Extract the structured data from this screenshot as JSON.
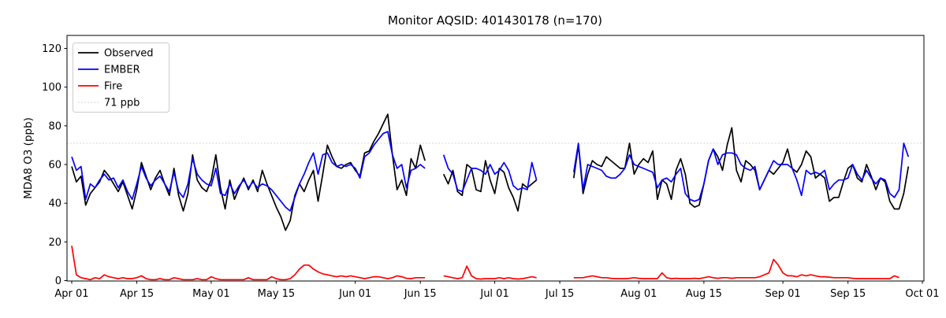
{
  "figure": {
    "title": "Monitor AQSID: 401430178 (n=170)"
  },
  "axes": {
    "ylabel": "MDA8 O3 (ppb)",
    "yticks": [
      0,
      20,
      40,
      60,
      80,
      100,
      120
    ],
    "xticks": [
      {
        "label": "Apr 01",
        "day": 0
      },
      {
        "label": "Apr 15",
        "day": 14
      },
      {
        "label": "May 01",
        "day": 30
      },
      {
        "label": "May 15",
        "day": 44
      },
      {
        "label": "Jun 01",
        "day": 61
      },
      {
        "label": "Jun 15",
        "day": 75
      },
      {
        "label": "Jul 01",
        "day": 91
      },
      {
        "label": "Jul 15",
        "day": 105
      },
      {
        "label": "Aug 01",
        "day": 122
      },
      {
        "label": "Aug 15",
        "day": 136
      },
      {
        "label": "Sep 01",
        "day": 153
      },
      {
        "label": "Sep 15",
        "day": 167
      },
      {
        "label": "Oct 01",
        "day": 183
      }
    ]
  },
  "legend": {
    "entries": [
      {
        "label": "Observed",
        "color": "#000000",
        "dash": null
      },
      {
        "label": "EMBER",
        "color": "#0000ff",
        "dash": null
      },
      {
        "label": "Fire",
        "color": "#ff0000",
        "dash": null
      },
      {
        "label": "71 ppb",
        "color": "#d3d3d3",
        "dash": "1.5 2.6"
      }
    ]
  },
  "chart_data": {
    "type": "line",
    "title": "Monitor AQSID: 401430178 (n=170)",
    "xlabel": "",
    "ylabel": "MDA8 O3 (ppb)",
    "x_unit": "days since Apr 01 (daily values, Apr 01 = day 0)",
    "x_range_days": [
      0,
      183
    ],
    "ylim": [
      0,
      126.5
    ],
    "grid": false,
    "legend_position": "upper left",
    "threshold": {
      "value": 71,
      "label": "71 ppb",
      "color": "#d3d3d3",
      "style": "dotted"
    },
    "data_gaps_days": [
      [
        77,
        79
      ],
      [
        101,
        107
      ]
    ],
    "series": [
      {
        "name": "Observed",
        "color": "#000000",
        "values": [
          59,
          51,
          54,
          39,
          45,
          48,
          51,
          57,
          54,
          50,
          46,
          51,
          44,
          37,
          47,
          61,
          54,
          47,
          53,
          57,
          50,
          44,
          58,
          44,
          36,
          45,
          65,
          52,
          48,
          46,
          52,
          65,
          48,
          37,
          52,
          42,
          48,
          53,
          47,
          52,
          46,
          57,
          50,
          44,
          38,
          33,
          26,
          31,
          44,
          50,
          46,
          52,
          57,
          41,
          55,
          70,
          64,
          59,
          58,
          60,
          61,
          57,
          54,
          66,
          67,
          72,
          76,
          81,
          86,
          65,
          47,
          52,
          44,
          63,
          58,
          70,
          62,
          null,
          null,
          null,
          55,
          50,
          57,
          46,
          44,
          60,
          58,
          47,
          46,
          62,
          52,
          45,
          58,
          56,
          48,
          43,
          36,
          50,
          48,
          50,
          52,
          null,
          null,
          null,
          null,
          null,
          null,
          null,
          53,
          70,
          45,
          55,
          62,
          60,
          59,
          64,
          62,
          60,
          58,
          58,
          71,
          55,
          60,
          63,
          61,
          67,
          42,
          52,
          50,
          42,
          57,
          63,
          55,
          40,
          38,
          39,
          50,
          62,
          68,
          64,
          57,
          70,
          79,
          57,
          51,
          62,
          60,
          57,
          47,
          52,
          57,
          55,
          58,
          61,
          68,
          58,
          56,
          60,
          67,
          64,
          53,
          55,
          53,
          41,
          43,
          43,
          51,
          58,
          60,
          53,
          51,
          60,
          54,
          47,
          53,
          51,
          41,
          37,
          37,
          45,
          59
        ]
      },
      {
        "name": "EMBER",
        "color": "#0000ff",
        "values": [
          64,
          57,
          59,
          42,
          50,
          48,
          52,
          55,
          52,
          53,
          48,
          52,
          46,
          42,
          50,
          59,
          53,
          49,
          52,
          54,
          50,
          46,
          56,
          46,
          43,
          50,
          63,
          55,
          52,
          50,
          49,
          58,
          45,
          44,
          50,
          45,
          49,
          52,
          48,
          51,
          48,
          50,
          49,
          47,
          44,
          41,
          38,
          36,
          43,
          50,
          55,
          61,
          66,
          55,
          65,
          66,
          61,
          59,
          60,
          59,
          60,
          58,
          53,
          64,
          66,
          70,
          73,
          76,
          77,
          65,
          58,
          60,
          48,
          57,
          58,
          60,
          58,
          null,
          null,
          null,
          65,
          58,
          55,
          47,
          46,
          52,
          58,
          58,
          57,
          55,
          60,
          55,
          57,
          61,
          57,
          49,
          47,
          48,
          47,
          61,
          52,
          null,
          null,
          null,
          null,
          null,
          null,
          null,
          56,
          71,
          47,
          60,
          59,
          58,
          57,
          54,
          53,
          53,
          55,
          58,
          65,
          60,
          59,
          58,
          57,
          56,
          48,
          52,
          53,
          51,
          55,
          58,
          45,
          42,
          41,
          42,
          50,
          62,
          68,
          60,
          65,
          66,
          66,
          65,
          60,
          58,
          57,
          59,
          47,
          52,
          57,
          62,
          60,
          60,
          60,
          58,
          52,
          44,
          57,
          55,
          56,
          55,
          57,
          47,
          50,
          52,
          52,
          53,
          60,
          55,
          52,
          57,
          53,
          50,
          53,
          52,
          45,
          43,
          47,
          71,
          64
        ]
      },
      {
        "name": "Fire",
        "color": "#ff0000",
        "values": [
          18,
          3,
          1.5,
          1,
          0.5,
          1.5,
          1,
          3,
          2,
          1.5,
          1,
          1.5,
          1,
          1,
          1.5,
          2.5,
          1,
          0.5,
          0.5,
          1,
          0.5,
          0.5,
          1.5,
          1,
          0.5,
          0.5,
          0.5,
          1,
          0.5,
          0.5,
          2,
          1,
          0.5,
          0.5,
          0.5,
          0.5,
          0.5,
          0.5,
          1.5,
          0.5,
          0.5,
          0.5,
          0.5,
          2,
          1,
          0.5,
          0.5,
          1,
          3,
          6,
          8,
          8,
          6,
          4.5,
          3.5,
          3,
          2.5,
          2,
          2.5,
          2,
          2.5,
          2,
          1.5,
          1,
          1.5,
          2,
          2,
          1.5,
          1,
          1.5,
          2.5,
          2,
          1.2,
          1,
          1.5,
          1.5,
          1.5,
          null,
          null,
          null,
          2.5,
          2,
          1.5,
          1,
          1.5,
          7.5,
          2.5,
          1,
          0.8,
          1,
          1,
          1,
          1.5,
          1,
          1.5,
          1,
          0.8,
          1,
          1.5,
          2,
          1.5,
          null,
          null,
          null,
          null,
          null,
          null,
          null,
          1.5,
          1.5,
          1.5,
          2,
          2.5,
          2,
          1.5,
          1.5,
          1.2,
          1,
          1,
          1,
          1.2,
          1.5,
          1.2,
          1,
          1,
          1,
          1,
          4,
          1.5,
          1,
          1.2,
          1,
          1,
          1,
          1.2,
          1,
          1.5,
          2,
          1.5,
          1.2,
          1.5,
          1.5,
          1.2,
          1.5,
          1.5,
          1.5,
          1.5,
          1.5,
          2,
          3,
          4,
          11,
          8,
          4,
          2.5,
          2.5,
          2,
          3,
          2.5,
          3,
          2.5,
          2,
          2,
          1.8,
          1.5,
          1.5,
          1.5,
          1.5,
          1.2,
          1,
          1,
          1,
          1,
          1,
          1,
          1,
          1,
          2.5,
          1.5,
          null,
          null
        ]
      }
    ]
  }
}
